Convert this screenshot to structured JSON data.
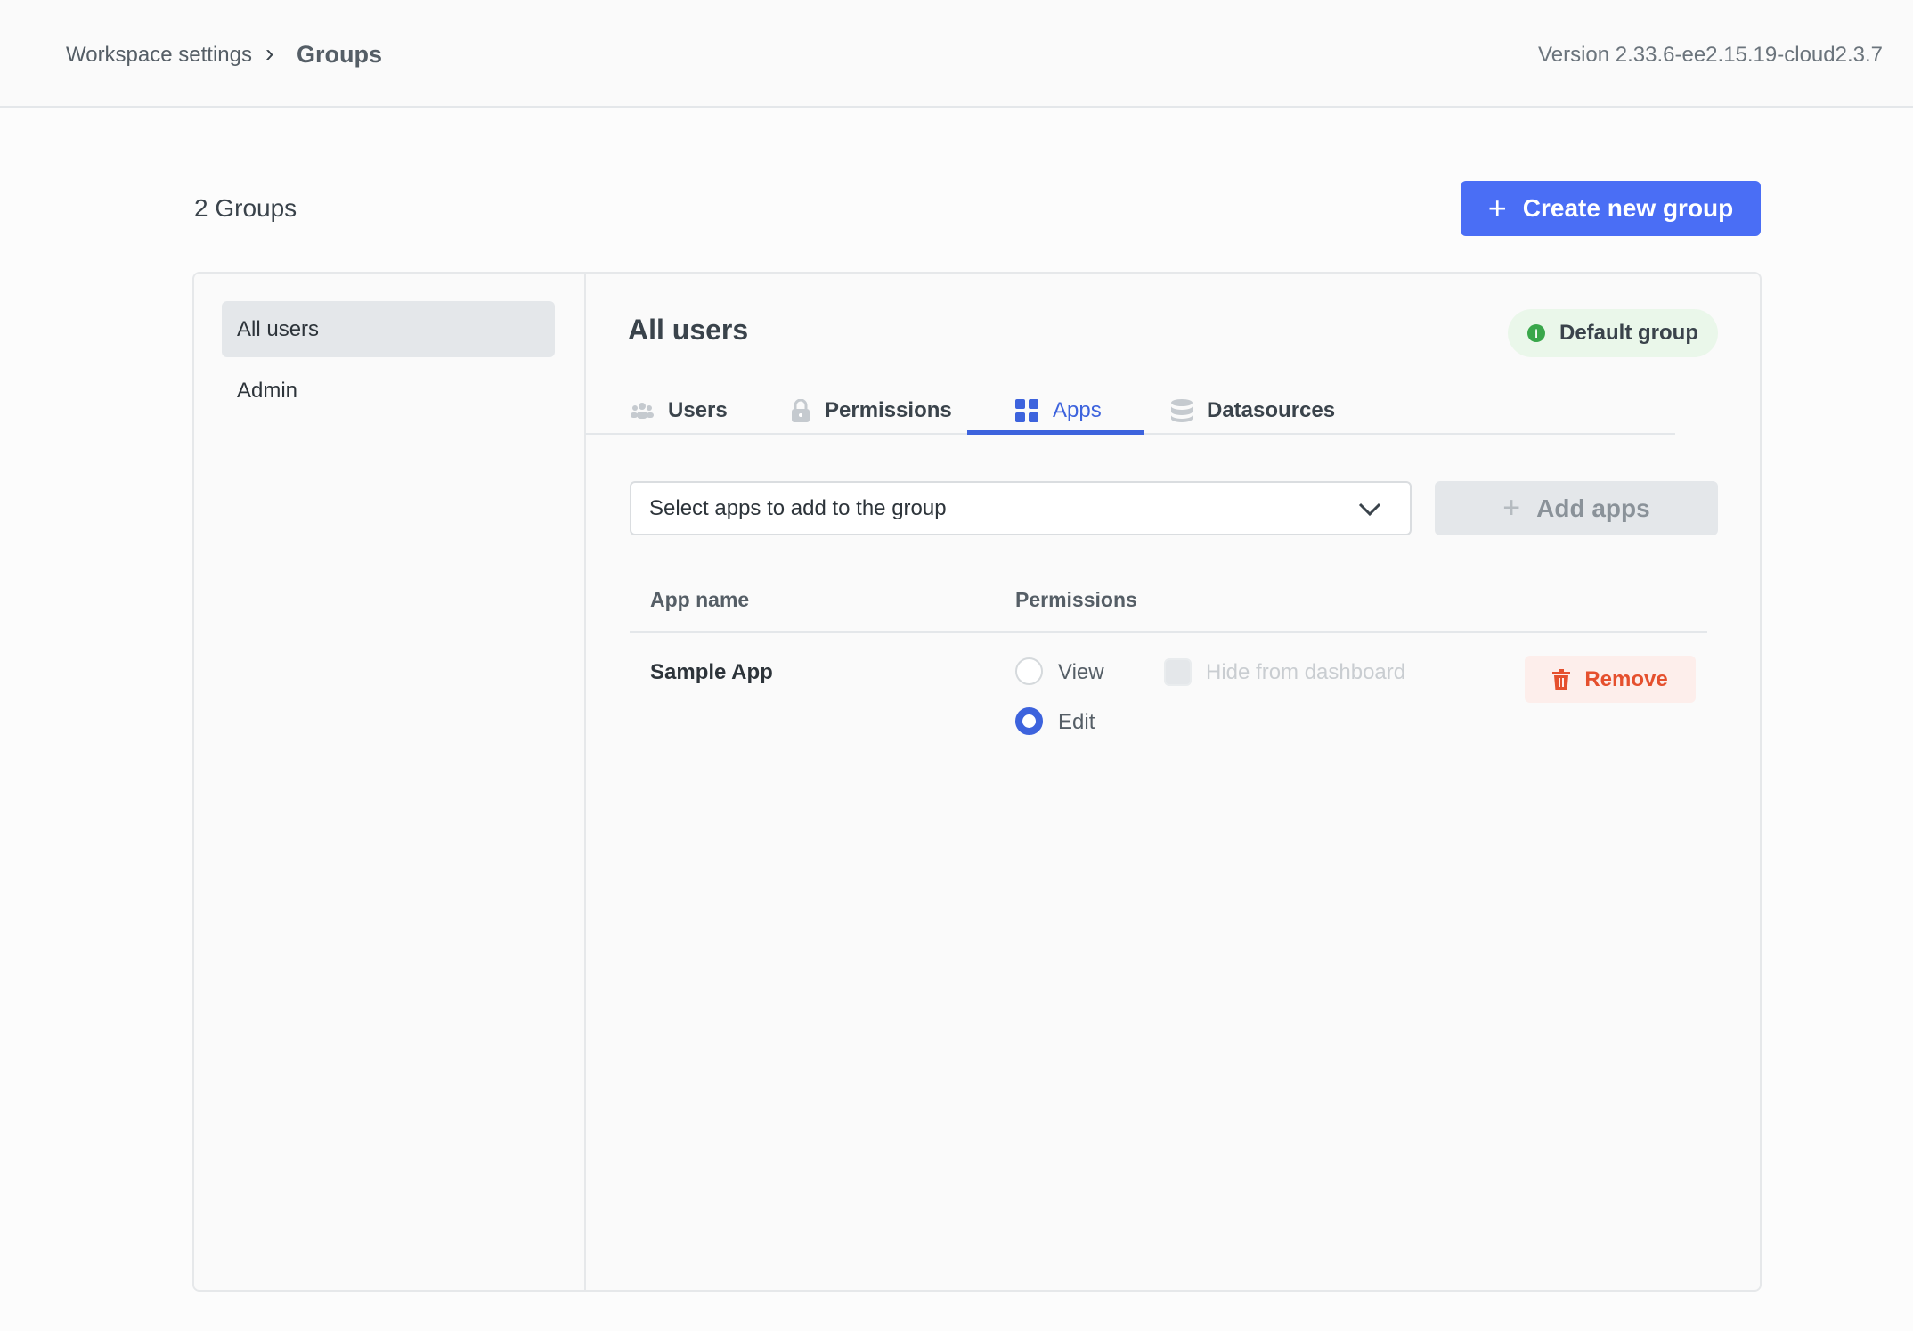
{
  "header": {
    "breadcrumb": [
      "Workspace settings",
      "Groups"
    ],
    "version": "Version 2.33.6-ee2.15.19-cloud2.3.7"
  },
  "groups": {
    "count_label": "2 Groups",
    "create_label": "Create new group",
    "items": [
      {
        "label": "All users",
        "active": true
      },
      {
        "label": "Admin",
        "active": false
      }
    ]
  },
  "group": {
    "title": "All users",
    "badge": "Default group",
    "tabs": [
      {
        "label": "Users",
        "icon": "users-icon"
      },
      {
        "label": "Permissions",
        "icon": "lock-icon"
      },
      {
        "label": "Apps",
        "icon": "apps-grid-icon",
        "active": true
      },
      {
        "label": "Datasources",
        "icon": "database-icon"
      }
    ]
  },
  "apps": {
    "select_placeholder": "Select apps to add to the group",
    "add_label": "Add apps",
    "columns": [
      "App name",
      "Permissions"
    ],
    "rows": [
      {
        "name": "Sample App",
        "view_label": "View",
        "edit_label": "Edit",
        "permission": "Edit",
        "hide_label": "Hide from dashboard",
        "hide_checked": false,
        "remove_label": "Remove"
      }
    ]
  },
  "colors": {
    "accent": "#3d63dd",
    "primary_button": "#4a6ef5",
    "danger": "#e5502e",
    "success": "#3aa74b"
  }
}
